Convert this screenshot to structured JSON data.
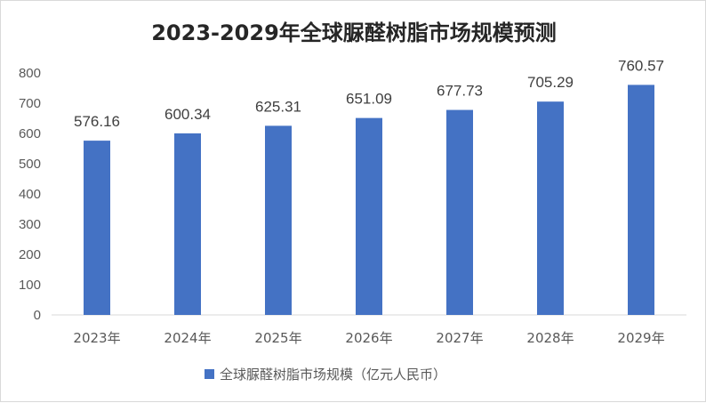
{
  "chart_data": {
    "type": "bar",
    "title": "2023-2029年全球脲醛树脂市场规模预测",
    "categories": [
      "2023年",
      "2024年",
      "2025年",
      "2026年",
      "2027年",
      "2028年",
      "2029年"
    ],
    "series": [
      {
        "name": "全球脲醛树脂市场规模（亿元人民币）",
        "values": [
          576.16,
          600.34,
          625.31,
          651.09,
          677.73,
          705.29,
          760.57
        ],
        "labels": [
          "576.16",
          "600.34",
          "625.31",
          "651.09",
          "677.73",
          "705.29",
          "760.57"
        ]
      }
    ],
    "ylim": [
      0,
      800
    ],
    "yticks": [
      "0",
      "100",
      "200",
      "300",
      "400",
      "500",
      "600",
      "700",
      "800"
    ],
    "grid": false,
    "legend_position": "bottom",
    "bar_color": "#4472C4"
  }
}
